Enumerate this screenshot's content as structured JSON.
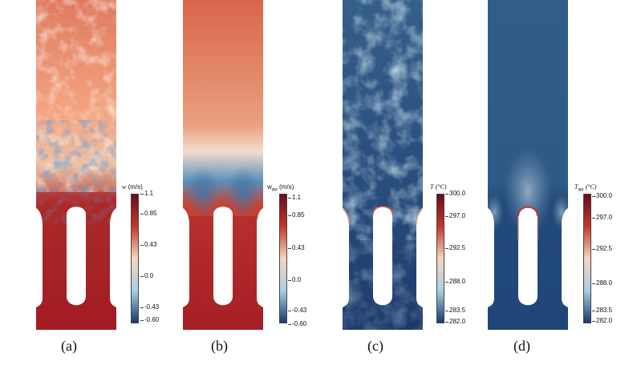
{
  "figure": {
    "panels": [
      {
        "id": "a",
        "caption": "(a)",
        "field": "instantaneous",
        "colorbar": {
          "var": "w",
          "sub": "",
          "unit": "(m/s)",
          "ticks": [
            "1.1",
            "0.85",
            "0.43",
            "0.0",
            "-0.43",
            "-0.60"
          ],
          "colormap": "diverging-red-blue",
          "colors": [
            "#6b0a1f",
            "#c0392b",
            "#f5d5c0",
            "#a9cfe3",
            "#1a3a73"
          ]
        }
      },
      {
        "id": "b",
        "caption": "(b)",
        "field": "time-averaged",
        "colorbar": {
          "var": "w",
          "sub": "av",
          "unit": "(m/s)",
          "ticks": [
            "1.1",
            "0.85",
            "0.43",
            "0.0",
            "-0.43",
            "-0.60"
          ],
          "colormap": "diverging-red-blue",
          "colors": [
            "#6b0a1f",
            "#c0392b",
            "#f5d5c0",
            "#a9cfe3",
            "#1a3a73"
          ]
        }
      },
      {
        "id": "c",
        "caption": "(c)",
        "field": "instantaneous",
        "colorbar": {
          "var": "T",
          "sub": "",
          "unit": "(°C)",
          "ticks": [
            "300.0",
            "297.0",
            "292.5",
            "288.0",
            "283.5",
            "282.0"
          ],
          "colormap": "diverging-red-blue",
          "colors": [
            "#6b0a1f",
            "#c0392b",
            "#f5d5c0",
            "#a9cfe3",
            "#1a3a73"
          ]
        }
      },
      {
        "id": "d",
        "caption": "(d)",
        "field": "time-averaged",
        "colorbar": {
          "var": "T",
          "sub": "av",
          "unit": "(°C)",
          "ticks": [
            "300.0",
            "297.0",
            "292.5",
            "288.0",
            "283.5",
            "282.0"
          ],
          "colormap": "diverging-red-blue",
          "colors": [
            "#6b0a1f",
            "#c0392b",
            "#f5d5c0",
            "#a9cfe3",
            "#1a3a73"
          ]
        }
      }
    ]
  }
}
